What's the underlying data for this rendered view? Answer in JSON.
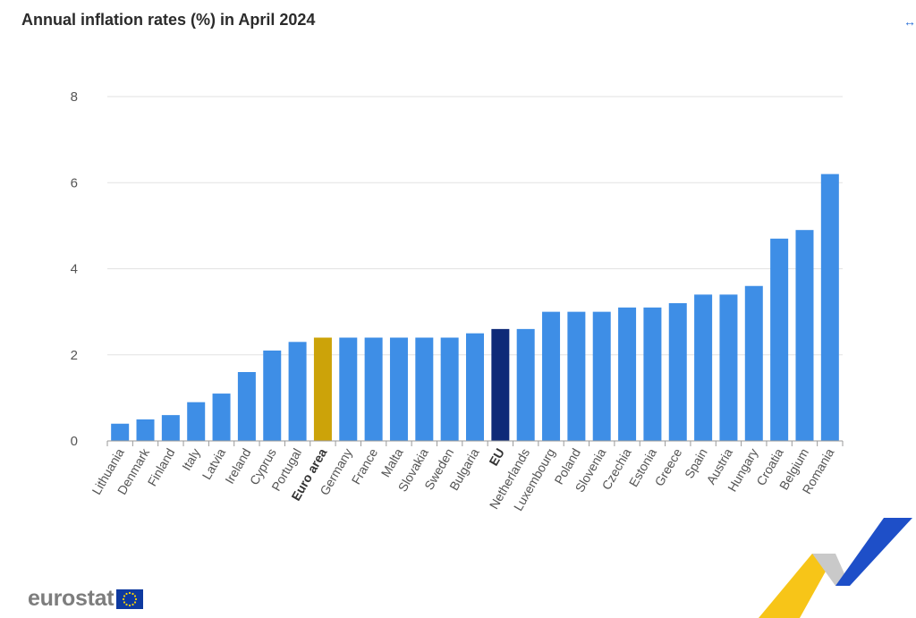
{
  "header": {
    "title": "Annual inflation rates (%) in April 2024"
  },
  "footer": {
    "logo_text": "eurostat"
  },
  "colors": {
    "default_bar": "#3e8ee6",
    "euro_area_bar": "#cca309",
    "eu_bar": "#0e2a78",
    "gridline": "#e2e2e2",
    "axis": "#9a9a9a"
  },
  "chart_data": {
    "type": "bar",
    "title": "Annual inflation rates (%) in April 2024",
    "xlabel": "",
    "ylabel": "",
    "ylim": [
      0,
      8
    ],
    "yticks": [
      0,
      2,
      4,
      6,
      8
    ],
    "grid": true,
    "categories": [
      "Lithuania",
      "Denmark",
      "Finland",
      "Italy",
      "Latvia",
      "Ireland",
      "Cyprus",
      "Portugal",
      "Euro area",
      "Germany",
      "France",
      "Malta",
      "Slovakia",
      "Sweden",
      "Bulgaria",
      "EU",
      "Netherlands",
      "Luxembourg",
      "Poland",
      "Slovenia",
      "Czechia",
      "Estonia",
      "Greece",
      "Spain",
      "Austria",
      "Hungary",
      "Croatia",
      "Belgium",
      "Romania"
    ],
    "values": [
      0.4,
      0.5,
      0.6,
      0.9,
      1.1,
      1.6,
      2.1,
      2.3,
      2.4,
      2.4,
      2.4,
      2.4,
      2.4,
      2.4,
      2.5,
      2.6,
      2.6,
      3.0,
      3.0,
      3.0,
      3.1,
      3.1,
      3.2,
      3.4,
      3.4,
      3.6,
      4.7,
      4.9,
      6.2
    ],
    "highlights": {
      "Euro area": "euro_area_bar",
      "EU": "eu_bar"
    },
    "bold_labels": [
      "Euro area",
      "EU"
    ]
  }
}
